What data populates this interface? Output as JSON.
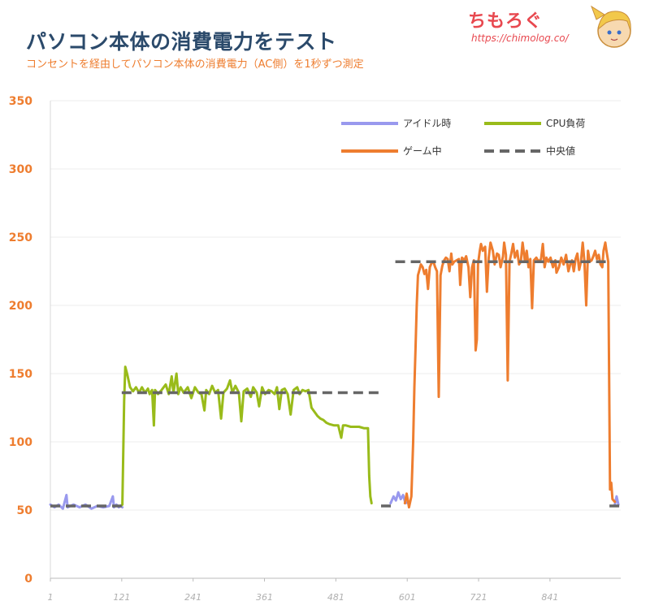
{
  "header": {
    "title": "パソコン本体の消費電力をテスト",
    "subtitle": "コンセントを経由してパソコン本体の消費電力（AC側）を1秒ずつ測定"
  },
  "logo": {
    "text": "ちもろぐ",
    "url": "https://chimolog.co/"
  },
  "colors": {
    "idle": "#9999ee",
    "cpu": "#99bb1a",
    "game": "#ee7d2f",
    "median": "#666666",
    "ytick": "#ee7d2f",
    "grid": "#eeeeee"
  },
  "chart_data": {
    "type": "line",
    "title": "パソコン本体の消費電力をテスト",
    "xlabel": "",
    "ylabel": "",
    "ylim": [
      0,
      350
    ],
    "xlim": [
      1,
      960
    ],
    "yticks": [
      0,
      50,
      100,
      150,
      200,
      250,
      300,
      350
    ],
    "xticks": [
      1,
      121,
      241,
      361,
      481,
      601,
      721,
      841
    ],
    "grid": true,
    "legend_position": "top-right",
    "series": [
      {
        "name": "アイドル時",
        "color_key": "idle",
        "style": "solid",
        "points": [
          [
            1,
            54
          ],
          [
            8,
            52
          ],
          [
            15,
            54
          ],
          [
            22,
            51
          ],
          [
            28,
            61
          ],
          [
            30,
            52
          ],
          [
            40,
            54
          ],
          [
            50,
            52
          ],
          [
            60,
            54
          ],
          [
            70,
            51
          ],
          [
            80,
            53
          ],
          [
            90,
            52
          ],
          [
            100,
            53
          ],
          [
            106,
            60
          ],
          [
            108,
            52
          ],
          [
            112,
            54
          ],
          [
            116,
            52
          ],
          [
            120,
            53
          ],
          [
            122,
            52
          ],
          [
            573,
            55
          ],
          [
            578,
            60
          ],
          [
            582,
            57
          ],
          [
            586,
            63
          ],
          [
            590,
            58
          ],
          [
            594,
            61
          ],
          [
            598,
            55
          ],
          [
            603,
            56
          ],
          [
            950,
            54
          ],
          [
            953,
            60
          ],
          [
            956,
            54
          ]
        ]
      },
      {
        "name": "CPU負荷",
        "color_key": "cpu",
        "style": "solid",
        "points": [
          [
            112,
            53
          ],
          [
            119,
            53
          ],
          [
            122,
            54
          ],
          [
            125,
            130
          ],
          [
            127,
            155
          ],
          [
            130,
            150
          ],
          [
            135,
            140
          ],
          [
            140,
            137
          ],
          [
            145,
            140
          ],
          [
            150,
            136
          ],
          [
            155,
            140
          ],
          [
            160,
            136
          ],
          [
            165,
            139
          ],
          [
            168,
            135
          ],
          [
            172,
            138
          ],
          [
            175,
            112
          ],
          [
            177,
            138
          ],
          [
            182,
            135
          ],
          [
            188,
            138
          ],
          [
            195,
            142
          ],
          [
            200,
            135
          ],
          [
            205,
            148
          ],
          [
            208,
            136
          ],
          [
            213,
            150
          ],
          [
            216,
            135
          ],
          [
            220,
            140
          ],
          [
            225,
            136
          ],
          [
            232,
            140
          ],
          [
            238,
            132
          ],
          [
            244,
            140
          ],
          [
            250,
            136
          ],
          [
            255,
            135
          ],
          [
            260,
            123
          ],
          [
            263,
            138
          ],
          [
            268,
            135
          ],
          [
            273,
            141
          ],
          [
            278,
            136
          ],
          [
            283,
            138
          ],
          [
            288,
            117
          ],
          [
            292,
            136
          ],
          [
            298,
            139
          ],
          [
            303,
            145
          ],
          [
            307,
            136
          ],
          [
            312,
            141
          ],
          [
            318,
            136
          ],
          [
            322,
            115
          ],
          [
            326,
            137
          ],
          [
            332,
            139
          ],
          [
            338,
            133
          ],
          [
            342,
            140
          ],
          [
            348,
            136
          ],
          [
            352,
            126
          ],
          [
            357,
            140
          ],
          [
            362,
            135
          ],
          [
            368,
            138
          ],
          [
            373,
            137
          ],
          [
            378,
            135
          ],
          [
            382,
            140
          ],
          [
            386,
            124
          ],
          [
            390,
            138
          ],
          [
            395,
            139
          ],
          [
            400,
            135
          ],
          [
            405,
            120
          ],
          [
            410,
            138
          ],
          [
            416,
            140
          ],
          [
            420,
            135
          ],
          [
            425,
            138
          ],
          [
            430,
            137
          ],
          [
            435,
            138
          ],
          [
            440,
            125
          ],
          [
            445,
            122
          ],
          [
            450,
            119
          ],
          [
            455,
            117
          ],
          [
            460,
            116
          ],
          [
            465,
            114
          ],
          [
            470,
            113
          ],
          [
            478,
            112
          ],
          [
            485,
            112
          ],
          [
            490,
            103
          ],
          [
            493,
            112
          ],
          [
            498,
            112
          ],
          [
            506,
            111
          ],
          [
            512,
            111
          ],
          [
            520,
            111
          ],
          [
            528,
            110
          ],
          [
            533,
            110
          ],
          [
            535,
            110
          ],
          [
            537,
            75
          ],
          [
            539,
            60
          ],
          [
            541,
            55
          ]
        ]
      },
      {
        "name": "ゲーム中",
        "color_key": "game",
        "style": "solid",
        "points": [
          [
            597,
            55
          ],
          [
            600,
            62
          ],
          [
            604,
            52
          ],
          [
            608,
            60
          ],
          [
            611,
            100
          ],
          [
            613,
            140
          ],
          [
            615,
            170
          ],
          [
            617,
            200
          ],
          [
            619,
            222
          ],
          [
            621,
            225
          ],
          [
            624,
            230
          ],
          [
            627,
            228
          ],
          [
            630,
            223
          ],
          [
            633,
            226
          ],
          [
            636,
            212
          ],
          [
            639,
            228
          ],
          [
            642,
            231
          ],
          [
            645,
            232
          ],
          [
            648,
            228
          ],
          [
            651,
            225
          ],
          [
            654,
            133
          ],
          [
            657,
            222
          ],
          [
            660,
            229
          ],
          [
            663,
            233
          ],
          [
            666,
            235
          ],
          [
            669,
            234
          ],
          [
            672,
            225
          ],
          [
            675,
            238
          ],
          [
            677,
            230
          ],
          [
            680,
            232
          ],
          [
            684,
            233
          ],
          [
            688,
            234
          ],
          [
            690,
            215
          ],
          [
            693,
            235
          ],
          [
            697,
            233
          ],
          [
            700,
            236
          ],
          [
            704,
            228
          ],
          [
            707,
            206
          ],
          [
            710,
            228
          ],
          [
            713,
            233
          ],
          [
            716,
            167
          ],
          [
            718,
            175
          ],
          [
            720,
            230
          ],
          [
            723,
            240
          ],
          [
            725,
            245
          ],
          [
            728,
            240
          ],
          [
            732,
            243
          ],
          [
            735,
            210
          ],
          [
            738,
            235
          ],
          [
            741,
            246
          ],
          [
            745,
            240
          ],
          [
            748,
            230
          ],
          [
            752,
            238
          ],
          [
            755,
            237
          ],
          [
            758,
            228
          ],
          [
            762,
            236
          ],
          [
            764,
            246
          ],
          [
            767,
            237
          ],
          [
            770,
            145
          ],
          [
            773,
            232
          ],
          [
            776,
            238
          ],
          [
            779,
            245
          ],
          [
            782,
            235
          ],
          [
            786,
            240
          ],
          [
            789,
            230
          ],
          [
            792,
            232
          ],
          [
            795,
            246
          ],
          [
            799,
            232
          ],
          [
            802,
            240
          ],
          [
            805,
            228
          ],
          [
            808,
            234
          ],
          [
            811,
            198
          ],
          [
            814,
            233
          ],
          [
            818,
            235
          ],
          [
            822,
            232
          ],
          [
            826,
            234
          ],
          [
            829,
            245
          ],
          [
            832,
            228
          ],
          [
            835,
            235
          ],
          [
            838,
            232
          ],
          [
            842,
            235
          ],
          [
            846,
            228
          ],
          [
            850,
            233
          ],
          [
            852,
            224
          ],
          [
            856,
            228
          ],
          [
            860,
            235
          ],
          [
            864,
            230
          ],
          [
            868,
            237
          ],
          [
            872,
            225
          ],
          [
            875,
            230
          ],
          [
            878,
            233
          ],
          [
            881,
            225
          ],
          [
            884,
            234
          ],
          [
            887,
            238
          ],
          [
            890,
            226
          ],
          [
            893,
            232
          ],
          [
            896,
            246
          ],
          [
            899,
            232
          ],
          [
            902,
            200
          ],
          [
            905,
            240
          ],
          [
            908,
            232
          ],
          [
            911,
            233
          ],
          [
            914,
            236
          ],
          [
            917,
            240
          ],
          [
            920,
            234
          ],
          [
            923,
            237
          ],
          [
            926,
            230
          ],
          [
            929,
            228
          ],
          [
            931,
            240
          ],
          [
            934,
            246
          ],
          [
            936,
            240
          ],
          [
            939,
            232
          ],
          [
            940,
            170
          ],
          [
            942,
            65
          ],
          [
            944,
            70
          ],
          [
            946,
            58
          ],
          [
            950,
            56
          ]
        ]
      },
      {
        "name": "中央値",
        "color_key": "median",
        "style": "dashed",
        "segments": [
          {
            "x": [
              1,
              121
            ],
            "y": 53
          },
          {
            "x": [
              121,
              557
            ],
            "y": 136
          },
          {
            "x": [
              557,
              581
            ],
            "y": 53
          },
          {
            "x": [
              581,
              941
            ],
            "y": 232
          },
          {
            "x": [
              941,
              960
            ],
            "y": 53
          }
        ]
      }
    ]
  }
}
